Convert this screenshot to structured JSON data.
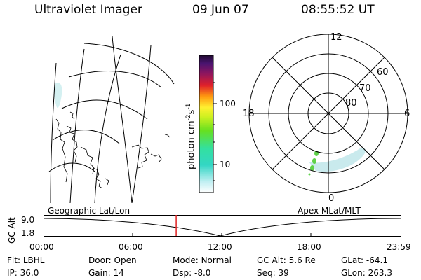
{
  "header": {
    "instrument": "Ultraviolet Imager",
    "date": "09 Jun 07",
    "time": "08:55:52 UT"
  },
  "colorbar": {
    "unit_label": "photon cm",
    "unit_sup1": "-2",
    "unit_mid": "s",
    "unit_sup2": "-1",
    "ticks": [
      "100",
      "10"
    ]
  },
  "polar": {
    "mlt_labels": {
      "top": "12",
      "left": "18",
      "right": "6",
      "bottom": "0"
    },
    "lat_labels": [
      "60",
      "70",
      "80"
    ]
  },
  "panels": {
    "left_caption": "Geographic Lat/Lon",
    "right_caption": "Apex MLat/MLT"
  },
  "timeline": {
    "ylabel": "GC Alt",
    "y_ticks": [
      "9.0",
      "1.8"
    ],
    "x_ticks": [
      "00:00",
      "06:00",
      "12:00",
      "18:00",
      "23:59"
    ],
    "marker_time": "08:55"
  },
  "info": {
    "row1": [
      {
        "k": "Flt:",
        "v": "LBHL"
      },
      {
        "k": "Door:",
        "v": "Open"
      },
      {
        "k": "Mode:",
        "v": "Normal"
      },
      {
        "k": "GC Alt:",
        "v": "5.6 Re"
      },
      {
        "k": "GLat:",
        "v": "-64.1"
      }
    ],
    "row2": [
      {
        "k": "IP:",
        "v": "36.0"
      },
      {
        "k": "Gain:",
        "v": "14"
      },
      {
        "k": "Dsp:",
        "v": "-8.0"
      },
      {
        "k": "Seq:",
        "v": "39"
      },
      {
        "k": "GLon:",
        "v": "263.3"
      }
    ]
  },
  "colors": {
    "marker": "#e02020",
    "aurora_light": "#bfe6ea",
    "aurora_green": "#5fd24a"
  }
}
